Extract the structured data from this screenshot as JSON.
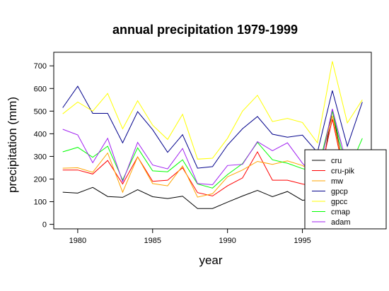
{
  "chart_data": {
    "type": "line",
    "title": "annual precipitation 1979-1999",
    "xlabel": "year",
    "ylabel": "precipitation (mm)",
    "xlim": [
      1978.4,
      1999.6
    ],
    "ylim": [
      -20,
      760
    ],
    "xticks": [
      1980,
      1985,
      1990,
      1995
    ],
    "xtick_labels": [
      "1980",
      "1985",
      "1990",
      "1995"
    ],
    "yticks": [
      0,
      100,
      200,
      300,
      400,
      500,
      600,
      700
    ],
    "ytick_labels": [
      "0",
      "100",
      "200",
      "300",
      "400",
      "500",
      "600",
      "700"
    ],
    "grid": false,
    "legend_position": "bottom-right",
    "x": [
      1979,
      1980,
      1981,
      1982,
      1983,
      1984,
      1985,
      1986,
      1987,
      1988,
      1989,
      1990,
      1991,
      1992,
      1993,
      1994,
      1995,
      1996,
      1997,
      1998,
      1999
    ],
    "series": [
      {
        "name": "cru",
        "color": "#000000",
        "values": [
          142,
          138,
          163,
          123,
          119,
          153,
          122,
          114,
          124,
          70,
          70,
          98,
          125,
          150,
          122,
          145,
          106,
          115,
          505,
          162,
          210
        ]
      },
      {
        "name": "cru-pik",
        "color": "#ff0000",
        "values": [
          240,
          240,
          222,
          282,
          178,
          298,
          190,
          195,
          250,
          140,
          125,
          170,
          205,
          320,
          195,
          195,
          178,
          165,
          465,
          155,
          250
        ]
      },
      {
        "name": "mw",
        "color": "#ffa500",
        "values": [
          248,
          250,
          230,
          315,
          142,
          298,
          180,
          170,
          258,
          120,
          135,
          210,
          240,
          278,
          265,
          280,
          260,
          220,
          480,
          175,
          270
        ]
      },
      {
        "name": "gpcp",
        "color": "#00008b",
        "values": [
          515,
          610,
          490,
          490,
          360,
          498,
          418,
          318,
          396,
          248,
          255,
          350,
          422,
          476,
          398,
          385,
          394,
          318,
          591,
          345,
          540
        ]
      },
      {
        "name": "gpcc",
        "color": "#ffff00",
        "values": [
          488,
          540,
          500,
          578,
          422,
          546,
          438,
          375,
          486,
          288,
          292,
          380,
          500,
          570,
          454,
          468,
          450,
          360,
          720,
          448,
          550
        ]
      },
      {
        "name": "cmap",
        "color": "#00ff00",
        "values": [
          320,
          340,
          296,
          345,
          196,
          338,
          236,
          232,
          285,
          178,
          160,
          220,
          268,
          362,
          285,
          270,
          246,
          230,
          500,
          225,
          380
        ]
      },
      {
        "name": "adam",
        "color": "#a020f0",
        "values": [
          420,
          395,
          272,
          380,
          188,
          362,
          262,
          245,
          335,
          180,
          175,
          260,
          265,
          365,
          325,
          360,
          270,
          196,
          510,
          255,
          300
        ]
      }
    ]
  }
}
